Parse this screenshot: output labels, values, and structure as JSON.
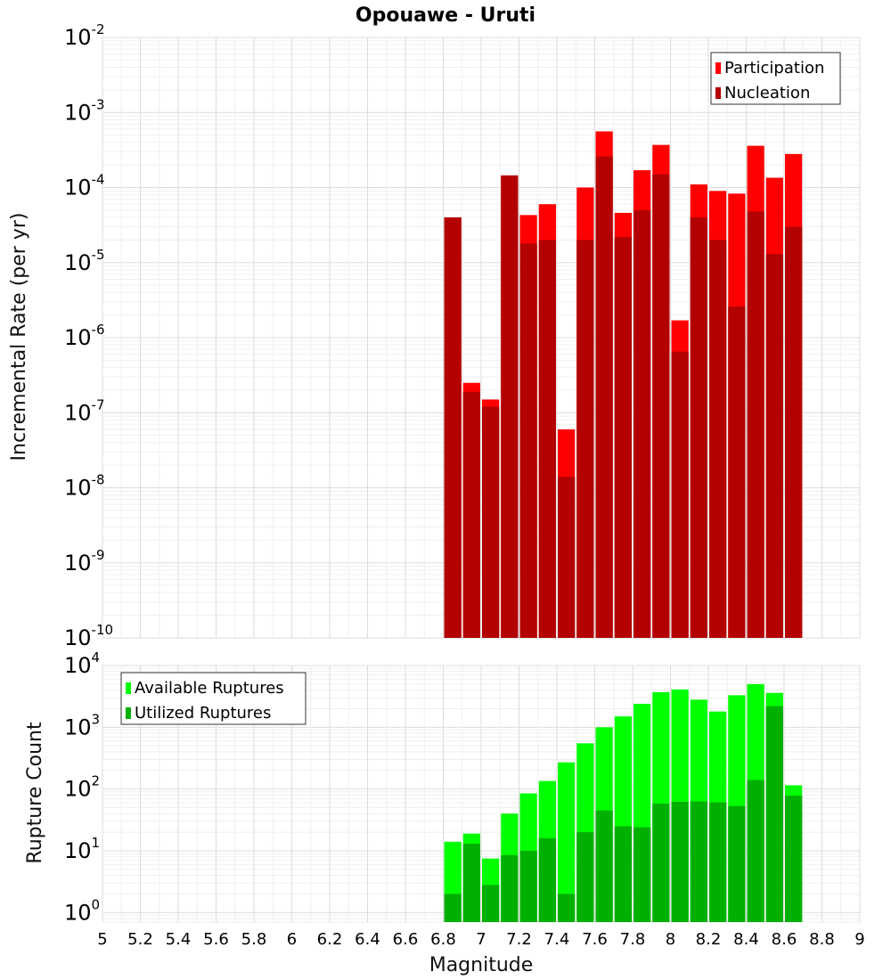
{
  "chart_data": [
    {
      "type": "bar",
      "panel": "top",
      "title": "Opouawe - Uruti",
      "ylabel": "Incremental Rate (per yr)",
      "yscale": "log",
      "ylim": [
        1e-10,
        0.01
      ],
      "xlim": [
        5,
        9
      ],
      "legend_position": "top-right",
      "bin_width": 0.1,
      "x": [
        6.85,
        6.95,
        7.05,
        7.15,
        7.25,
        7.35,
        7.45,
        7.55,
        7.65,
        7.75,
        7.85,
        7.95,
        8.05,
        8.15,
        8.25,
        8.35,
        8.45,
        8.55,
        8.65
      ],
      "series": [
        {
          "name": "Participation",
          "color": "#ff0000",
          "values": [
            4e-05,
            2.5e-07,
            1.5e-07,
            0.000145,
            4.3e-05,
            6e-05,
            6e-08,
            0.0001,
            0.00056,
            4.6e-05,
            0.00017,
            0.00037,
            1.7e-06,
            0.00011,
            9e-05,
            8.3e-05,
            0.00036,
            0.000135,
            0.00028
          ]
        },
        {
          "name": "Nucleation",
          "color": "#b30000",
          "values": [
            4e-05,
            1.9e-07,
            1.2e-07,
            0.000145,
            1.8e-05,
            2e-05,
            1.4e-08,
            2e-05,
            0.00026,
            2.2e-05,
            5e-05,
            0.00015,
            6.5e-07,
            4e-05,
            2e-05,
            2.6e-06,
            4.8e-05,
            1.3e-05,
            3e-05
          ]
        }
      ],
      "y_ticks": [
        {
          "base": "10",
          "exp": "-10",
          "value": 1e-10
        },
        {
          "base": "10",
          "exp": "-9",
          "value": 1e-09
        },
        {
          "base": "10",
          "exp": "-8",
          "value": 1e-08
        },
        {
          "base": "10",
          "exp": "-7",
          "value": 1e-07
        },
        {
          "base": "10",
          "exp": "-6",
          "value": 1e-06
        },
        {
          "base": "10",
          "exp": "-5",
          "value": 1e-05
        },
        {
          "base": "10",
          "exp": "-4",
          "value": 0.0001
        },
        {
          "base": "10",
          "exp": "-3",
          "value": 0.001
        },
        {
          "base": "10",
          "exp": "-2",
          "value": 0.01
        }
      ]
    },
    {
      "type": "bar",
      "panel": "bottom",
      "ylabel": "Rupture Count",
      "xlabel": "Magnitude",
      "yscale": "log",
      "ylim": [
        0.7,
        10000
      ],
      "xlim": [
        5,
        9
      ],
      "legend_position": "top-left",
      "bin_width": 0.1,
      "x": [
        6.85,
        6.95,
        7.05,
        7.15,
        7.25,
        7.35,
        7.45,
        7.55,
        7.65,
        7.75,
        7.85,
        7.95,
        8.05,
        8.15,
        8.25,
        8.35,
        8.45,
        8.55,
        8.65
      ],
      "series": [
        {
          "name": "Available Ruptures",
          "color": "#00ff00",
          "values": [
            14,
            19,
            7.5,
            40,
            85,
            135,
            270,
            550,
            1000,
            1500,
            2400,
            3700,
            4100,
            2800,
            1800,
            3300,
            5000,
            3600,
            115
          ]
        },
        {
          "name": "Utilized Ruptures",
          "color": "#00b000",
          "values": [
            2,
            13,
            2.8,
            8.5,
            10,
            16,
            2,
            20,
            45,
            25,
            24,
            58,
            62,
            63,
            61,
            53,
            140,
            2200,
            78
          ]
        }
      ],
      "y_ticks": [
        {
          "base": "10",
          "exp": "0",
          "value": 1
        },
        {
          "base": "10",
          "exp": "1",
          "value": 10
        },
        {
          "base": "10",
          "exp": "2",
          "value": 100
        },
        {
          "base": "10",
          "exp": "3",
          "value": 1000
        },
        {
          "base": "10",
          "exp": "4",
          "value": 10000
        }
      ],
      "x_ticks": [
        "5",
        "5.2",
        "5.4",
        "5.6",
        "5.8",
        "6",
        "6.2",
        "6.4",
        "6.6",
        "6.8",
        "7",
        "7.2",
        "7.4",
        "7.6",
        "7.8",
        "8",
        "8.2",
        "8.4",
        "8.6",
        "8.8",
        "9"
      ]
    }
  ]
}
